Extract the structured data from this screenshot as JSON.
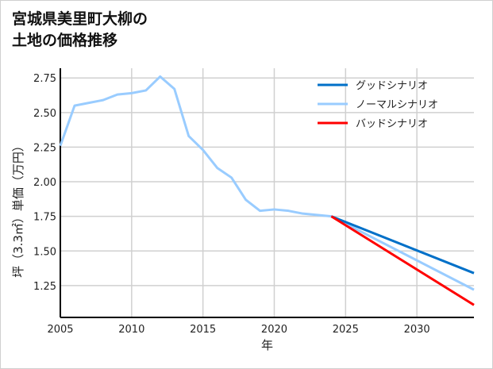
{
  "chart_data": {
    "type": "line",
    "title": [
      "宮城県美里町大柳の",
      "土地の価格推移"
    ],
    "xlabel": "年",
    "ylabel": "坪（3.3㎡）単価（万円）",
    "xlim": [
      2005,
      2034
    ],
    "ylim": [
      1.02,
      2.82
    ],
    "xticks": [
      2005,
      2010,
      2015,
      2020,
      2025,
      2030
    ],
    "yticks": [
      1.25,
      1.5,
      1.75,
      2.0,
      2.25,
      2.5,
      2.75
    ],
    "grid": true,
    "legend_position": "top-right",
    "series": [
      {
        "name": "グッドシナリオ",
        "color": "#0070c8",
        "x": [
          2024,
          2034
        ],
        "y": [
          1.75,
          1.34
        ]
      },
      {
        "name": "ノーマルシナリオ",
        "color": "#99ccff",
        "x": [
          2005,
          2006,
          2007,
          2008,
          2009,
          2010,
          2011,
          2012,
          2013,
          2014,
          2015,
          2016,
          2017,
          2018,
          2019,
          2020,
          2021,
          2022,
          2023,
          2024,
          2034
        ],
        "y": [
          2.26,
          2.55,
          2.57,
          2.59,
          2.63,
          2.64,
          2.66,
          2.76,
          2.67,
          2.33,
          2.23,
          2.1,
          2.03,
          1.87,
          1.79,
          1.8,
          1.79,
          1.77,
          1.76,
          1.75,
          1.22
        ]
      },
      {
        "name": "バッドシナリオ",
        "color": "#ff0000",
        "x": [
          2024,
          2034
        ],
        "y": [
          1.75,
          1.11
        ]
      }
    ]
  }
}
